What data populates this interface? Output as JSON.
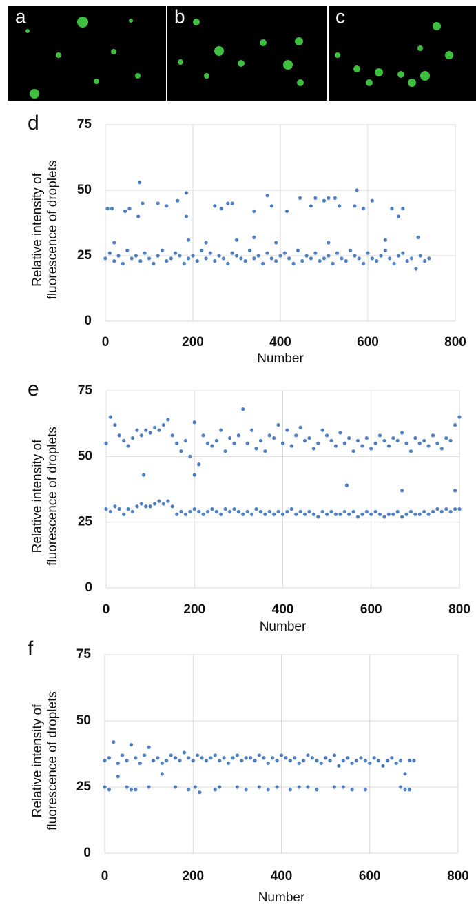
{
  "panels": [
    "a",
    "b",
    "c"
  ],
  "chart_data": [
    {
      "type": "scatter",
      "panel_label": "d",
      "x_label": "Number",
      "y_label": [
        "Relative intensity of",
        "fluorescence of droplets"
      ],
      "xlim": [
        0,
        800
      ],
      "xticks": [
        0,
        200,
        400,
        600,
        800
      ],
      "ylim": [
        0,
        75
      ],
      "yticks": [
        0,
        25,
        50,
        75
      ],
      "grid": true,
      "color": "#4f7fc0",
      "x": [
        0,
        10,
        20,
        30,
        40,
        50,
        60,
        70,
        80,
        90,
        100,
        110,
        120,
        130,
        140,
        150,
        160,
        170,
        180,
        190,
        200,
        210,
        220,
        230,
        240,
        250,
        260,
        270,
        280,
        290,
        300,
        310,
        320,
        330,
        340,
        350,
        360,
        370,
        380,
        390,
        400,
        410,
        420,
        430,
        440,
        450,
        460,
        470,
        480,
        490,
        500,
        510,
        520,
        530,
        540,
        550,
        560,
        570,
        580,
        590,
        600,
        610,
        620,
        630,
        640,
        650,
        660,
        670,
        680,
        690,
        700,
        710,
        720,
        730,
        740,
        5,
        15,
        45,
        55,
        75,
        78,
        85,
        120,
        140,
        165,
        185,
        185,
        250,
        265,
        280,
        290,
        340,
        370,
        380,
        415,
        445,
        470,
        480,
        500,
        510,
        525,
        535,
        570,
        575,
        590,
        610,
        655,
        680,
        670,
        20,
        190,
        230,
        300,
        340,
        390,
        510,
        640,
        715
      ],
      "values": [
        24,
        26,
        23,
        25,
        22,
        27,
        24,
        25,
        23,
        26,
        24,
        22,
        25,
        27,
        23,
        24,
        26,
        25,
        22,
        24,
        25,
        23,
        27,
        24,
        26,
        23,
        25,
        24,
        22,
        26,
        25,
        24,
        23,
        27,
        24,
        25,
        22,
        26,
        24,
        23,
        25,
        26,
        24,
        22,
        27,
        23,
        25,
        24,
        26,
        23,
        24,
        25,
        22,
        26,
        24,
        23,
        27,
        25,
        24,
        22,
        26,
        24,
        23,
        25,
        27,
        24,
        22,
        25,
        26,
        23,
        24,
        20,
        25,
        23,
        24,
        43,
        43,
        42,
        43,
        40,
        53,
        45,
        45,
        44,
        46,
        49,
        40,
        44,
        43,
        45,
        45,
        42,
        48,
        44,
        42,
        47,
        44,
        47,
        46,
        47,
        47,
        44,
        44,
        50,
        43,
        46,
        43,
        43,
        40,
        30,
        31,
        30,
        31,
        32,
        30,
        30,
        31,
        32
      ]
    },
    {
      "type": "scatter",
      "panel_label": "e",
      "x_label": "Number",
      "y_label": [
        "Relative intensity of",
        "fluorescence of droplets"
      ],
      "xlim": [
        0,
        800
      ],
      "xticks": [
        0,
        200,
        400,
        600,
        800
      ],
      "ylim": [
        0,
        75
      ],
      "yticks": [
        0,
        25,
        50,
        75
      ],
      "grid": true,
      "color": "#4f7fc0",
      "x": [
        0,
        10,
        20,
        30,
        40,
        50,
        60,
        70,
        80,
        90,
        100,
        110,
        120,
        130,
        140,
        150,
        160,
        170,
        180,
        190,
        200,
        210,
        220,
        230,
        240,
        250,
        260,
        270,
        280,
        290,
        300,
        310,
        320,
        330,
        340,
        350,
        360,
        370,
        380,
        390,
        400,
        410,
        420,
        430,
        440,
        450,
        460,
        470,
        480,
        490,
        500,
        510,
        520,
        530,
        540,
        550,
        560,
        570,
        580,
        590,
        600,
        610,
        620,
        630,
        640,
        650,
        660,
        670,
        680,
        690,
        700,
        710,
        720,
        730,
        740,
        750,
        760,
        770,
        780,
        790,
        800,
        0,
        10,
        20,
        30,
        40,
        50,
        60,
        70,
        80,
        90,
        100,
        110,
        120,
        130,
        140,
        150,
        160,
        170,
        180,
        190,
        200,
        210,
        220,
        230,
        240,
        250,
        260,
        270,
        280,
        290,
        300,
        310,
        320,
        330,
        340,
        350,
        360,
        370,
        380,
        390,
        400,
        410,
        420,
        430,
        440,
        450,
        460,
        470,
        480,
        490,
        500,
        510,
        520,
        530,
        540,
        550,
        560,
        570,
        580,
        590,
        600,
        610,
        620,
        630,
        640,
        650,
        660,
        670,
        680,
        690,
        700,
        710,
        720,
        730,
        740,
        750,
        760,
        770,
        780,
        790,
        800,
        85,
        200,
        545,
        670,
        790
      ],
      "values": [
        30,
        29,
        31,
        30,
        28,
        30,
        29,
        31,
        32,
        31,
        31,
        32,
        33,
        32,
        33,
        31,
        28,
        29,
        28,
        29,
        30,
        29,
        28,
        29,
        30,
        29,
        28,
        30,
        29,
        30,
        29,
        28,
        29,
        28,
        30,
        29,
        28,
        29,
        28,
        29,
        28,
        29,
        30,
        28,
        29,
        28,
        29,
        28,
        27,
        29,
        28,
        29,
        28,
        28,
        29,
        28,
        29,
        27,
        28,
        29,
        28,
        29,
        28,
        27,
        28,
        28,
        29,
        27,
        28,
        29,
        28,
        28,
        29,
        28,
        29,
        30,
        29,
        30,
        29,
        30,
        30,
        55,
        65,
        62,
        58,
        56,
        54,
        57,
        60,
        58,
        60,
        59,
        61,
        60,
        62,
        64,
        58,
        55,
        52,
        56,
        50,
        63,
        47,
        58,
        55,
        54,
        56,
        60,
        52,
        57,
        55,
        58,
        68,
        55,
        60,
        53,
        56,
        52,
        58,
        57,
        62,
        55,
        60,
        54,
        58,
        61,
        56,
        57,
        53,
        55,
        60,
        58,
        56,
        54,
        59,
        55,
        57,
        52,
        56,
        54,
        57,
        53,
        55,
        58,
        56,
        54,
        57,
        56,
        59,
        55,
        52,
        57,
        55,
        56,
        54,
        58,
        55,
        53,
        57,
        56,
        62,
        65,
        43,
        43,
        39,
        37,
        37
      ]
    },
    {
      "type": "scatter",
      "panel_label": "f",
      "x_label": "Number",
      "y_label": [
        "Relative intensity of",
        "fluorescence of droplets"
      ],
      "xlim": [
        0,
        800
      ],
      "xticks": [
        0,
        200,
        400,
        600,
        800
      ],
      "ylim": [
        0,
        75
      ],
      "yticks": [
        0,
        25,
        50,
        75
      ],
      "grid": true,
      "color": "#4f7fc0",
      "x": [
        0,
        10,
        20,
        30,
        40,
        50,
        60,
        70,
        80,
        90,
        100,
        110,
        120,
        130,
        140,
        150,
        160,
        170,
        180,
        190,
        200,
        210,
        220,
        230,
        240,
        250,
        260,
        270,
        280,
        290,
        300,
        310,
        320,
        330,
        340,
        350,
        360,
        370,
        380,
        390,
        400,
        410,
        420,
        430,
        440,
        450,
        460,
        470,
        480,
        490,
        500,
        510,
        520,
        530,
        540,
        550,
        560,
        570,
        580,
        590,
        600,
        610,
        620,
        630,
        640,
        650,
        660,
        670,
        680,
        690,
        700,
        0,
        10,
        30,
        50,
        60,
        70,
        100,
        130,
        160,
        190,
        205,
        215,
        250,
        260,
        300,
        320,
        350,
        370,
        390,
        420,
        440,
        460,
        480,
        520,
        540,
        560,
        590,
        670,
        680,
        690
      ],
      "values": [
        35,
        36,
        42,
        34,
        37,
        35,
        41,
        36,
        34,
        37,
        40,
        35,
        36,
        34,
        35,
        37,
        36,
        35,
        38,
        36,
        35,
        37,
        36,
        35,
        36,
        37,
        35,
        36,
        34,
        36,
        37,
        35,
        36,
        36,
        35,
        37,
        36,
        34,
        36,
        35,
        37,
        36,
        35,
        36,
        34,
        35,
        37,
        36,
        35,
        34,
        36,
        35,
        37,
        33,
        35,
        36,
        34,
        35,
        36,
        35,
        34,
        36,
        35,
        33,
        35,
        36,
        34,
        35,
        30,
        35,
        35,
        25,
        24,
        29,
        25,
        24,
        24,
        25,
        30,
        25,
        24,
        25,
        23,
        24,
        25,
        25,
        24,
        25,
        24,
        25,
        24,
        25,
        25,
        24,
        25,
        25,
        24,
        24,
        25,
        24,
        24
      ]
    }
  ]
}
